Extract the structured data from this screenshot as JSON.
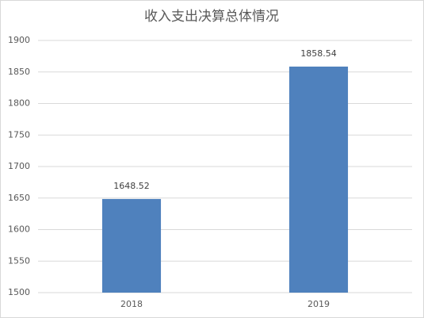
{
  "chart_data": {
    "type": "bar",
    "title": "收入支出决算总体情况",
    "categories": [
      "2018",
      "2019"
    ],
    "values": [
      1648.52,
      1858.54
    ],
    "color": "#4f81bd",
    "ylim": [
      1500,
      1900
    ],
    "yticks": [
      1500,
      1550,
      1600,
      1650,
      1700,
      1750,
      1800,
      1850,
      1900
    ],
    "grid": true
  }
}
